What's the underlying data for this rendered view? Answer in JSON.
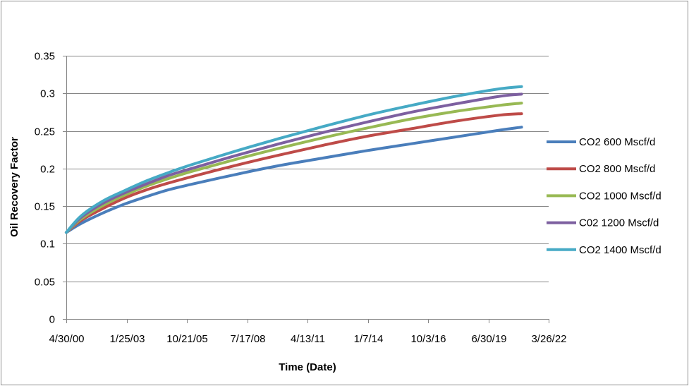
{
  "chart_data": {
    "type": "line",
    "title": "",
    "xlabel": "Time (Date)",
    "ylabel": "Oil Recovery Factor",
    "x_ticks": [
      "4/30/00",
      "1/25/03",
      "10/21/05",
      "7/17/08",
      "4/13/11",
      "1/7/14",
      "10/3/16",
      "6/30/19",
      "3/26/22"
    ],
    "xlim": [
      "4/30/00",
      "3/26/22"
    ],
    "ylim": [
      0,
      0.35
    ],
    "y_ticks": [
      "0",
      "0.05",
      "0.1",
      "0.15",
      "0.2",
      "0.25",
      "0.3",
      "0.35"
    ],
    "grid": "horizontal",
    "legend_position": "right",
    "x": [
      "4/30/00",
      "1/1/01",
      "1/1/02",
      "1/1/03",
      "1/1/04",
      "1/1/05",
      "1/1/06",
      "1/1/08",
      "1/1/10",
      "1/1/12",
      "1/1/14",
      "1/1/16",
      "1/1/18",
      "1/1/20",
      "1/1/21"
    ],
    "series": [
      {
        "name": "CO2 600 Mscf/d",
        "color": "#4a7ebb",
        "values": [
          0.115,
          0.127,
          0.141,
          0.153,
          0.163,
          0.172,
          0.179,
          0.192,
          0.204,
          0.214,
          0.224,
          0.233,
          0.242,
          0.251,
          0.255
        ]
      },
      {
        "name": "CO2 800 Mscf/d",
        "color": "#be4b48",
        "values": [
          0.115,
          0.131,
          0.147,
          0.161,
          0.172,
          0.181,
          0.189,
          0.204,
          0.218,
          0.231,
          0.243,
          0.253,
          0.263,
          0.271,
          0.273
        ]
      },
      {
        "name": "CO2 1000 Mscf/d",
        "color": "#98b954",
        "values": [
          0.115,
          0.133,
          0.151,
          0.165,
          0.177,
          0.187,
          0.196,
          0.212,
          0.227,
          0.241,
          0.254,
          0.266,
          0.276,
          0.284,
          0.287
        ]
      },
      {
        "name": "C02 1200 Mscf/d",
        "color": "#7d60a0",
        "values": [
          0.115,
          0.135,
          0.154,
          0.168,
          0.18,
          0.191,
          0.2,
          0.217,
          0.233,
          0.248,
          0.262,
          0.275,
          0.286,
          0.296,
          0.299
        ]
      },
      {
        "name": "CO2 1400 Mscf/d",
        "color": "#46aac5",
        "values": [
          0.115,
          0.137,
          0.157,
          0.171,
          0.184,
          0.195,
          0.205,
          0.223,
          0.24,
          0.256,
          0.271,
          0.284,
          0.296,
          0.306,
          0.309
        ]
      }
    ]
  }
}
